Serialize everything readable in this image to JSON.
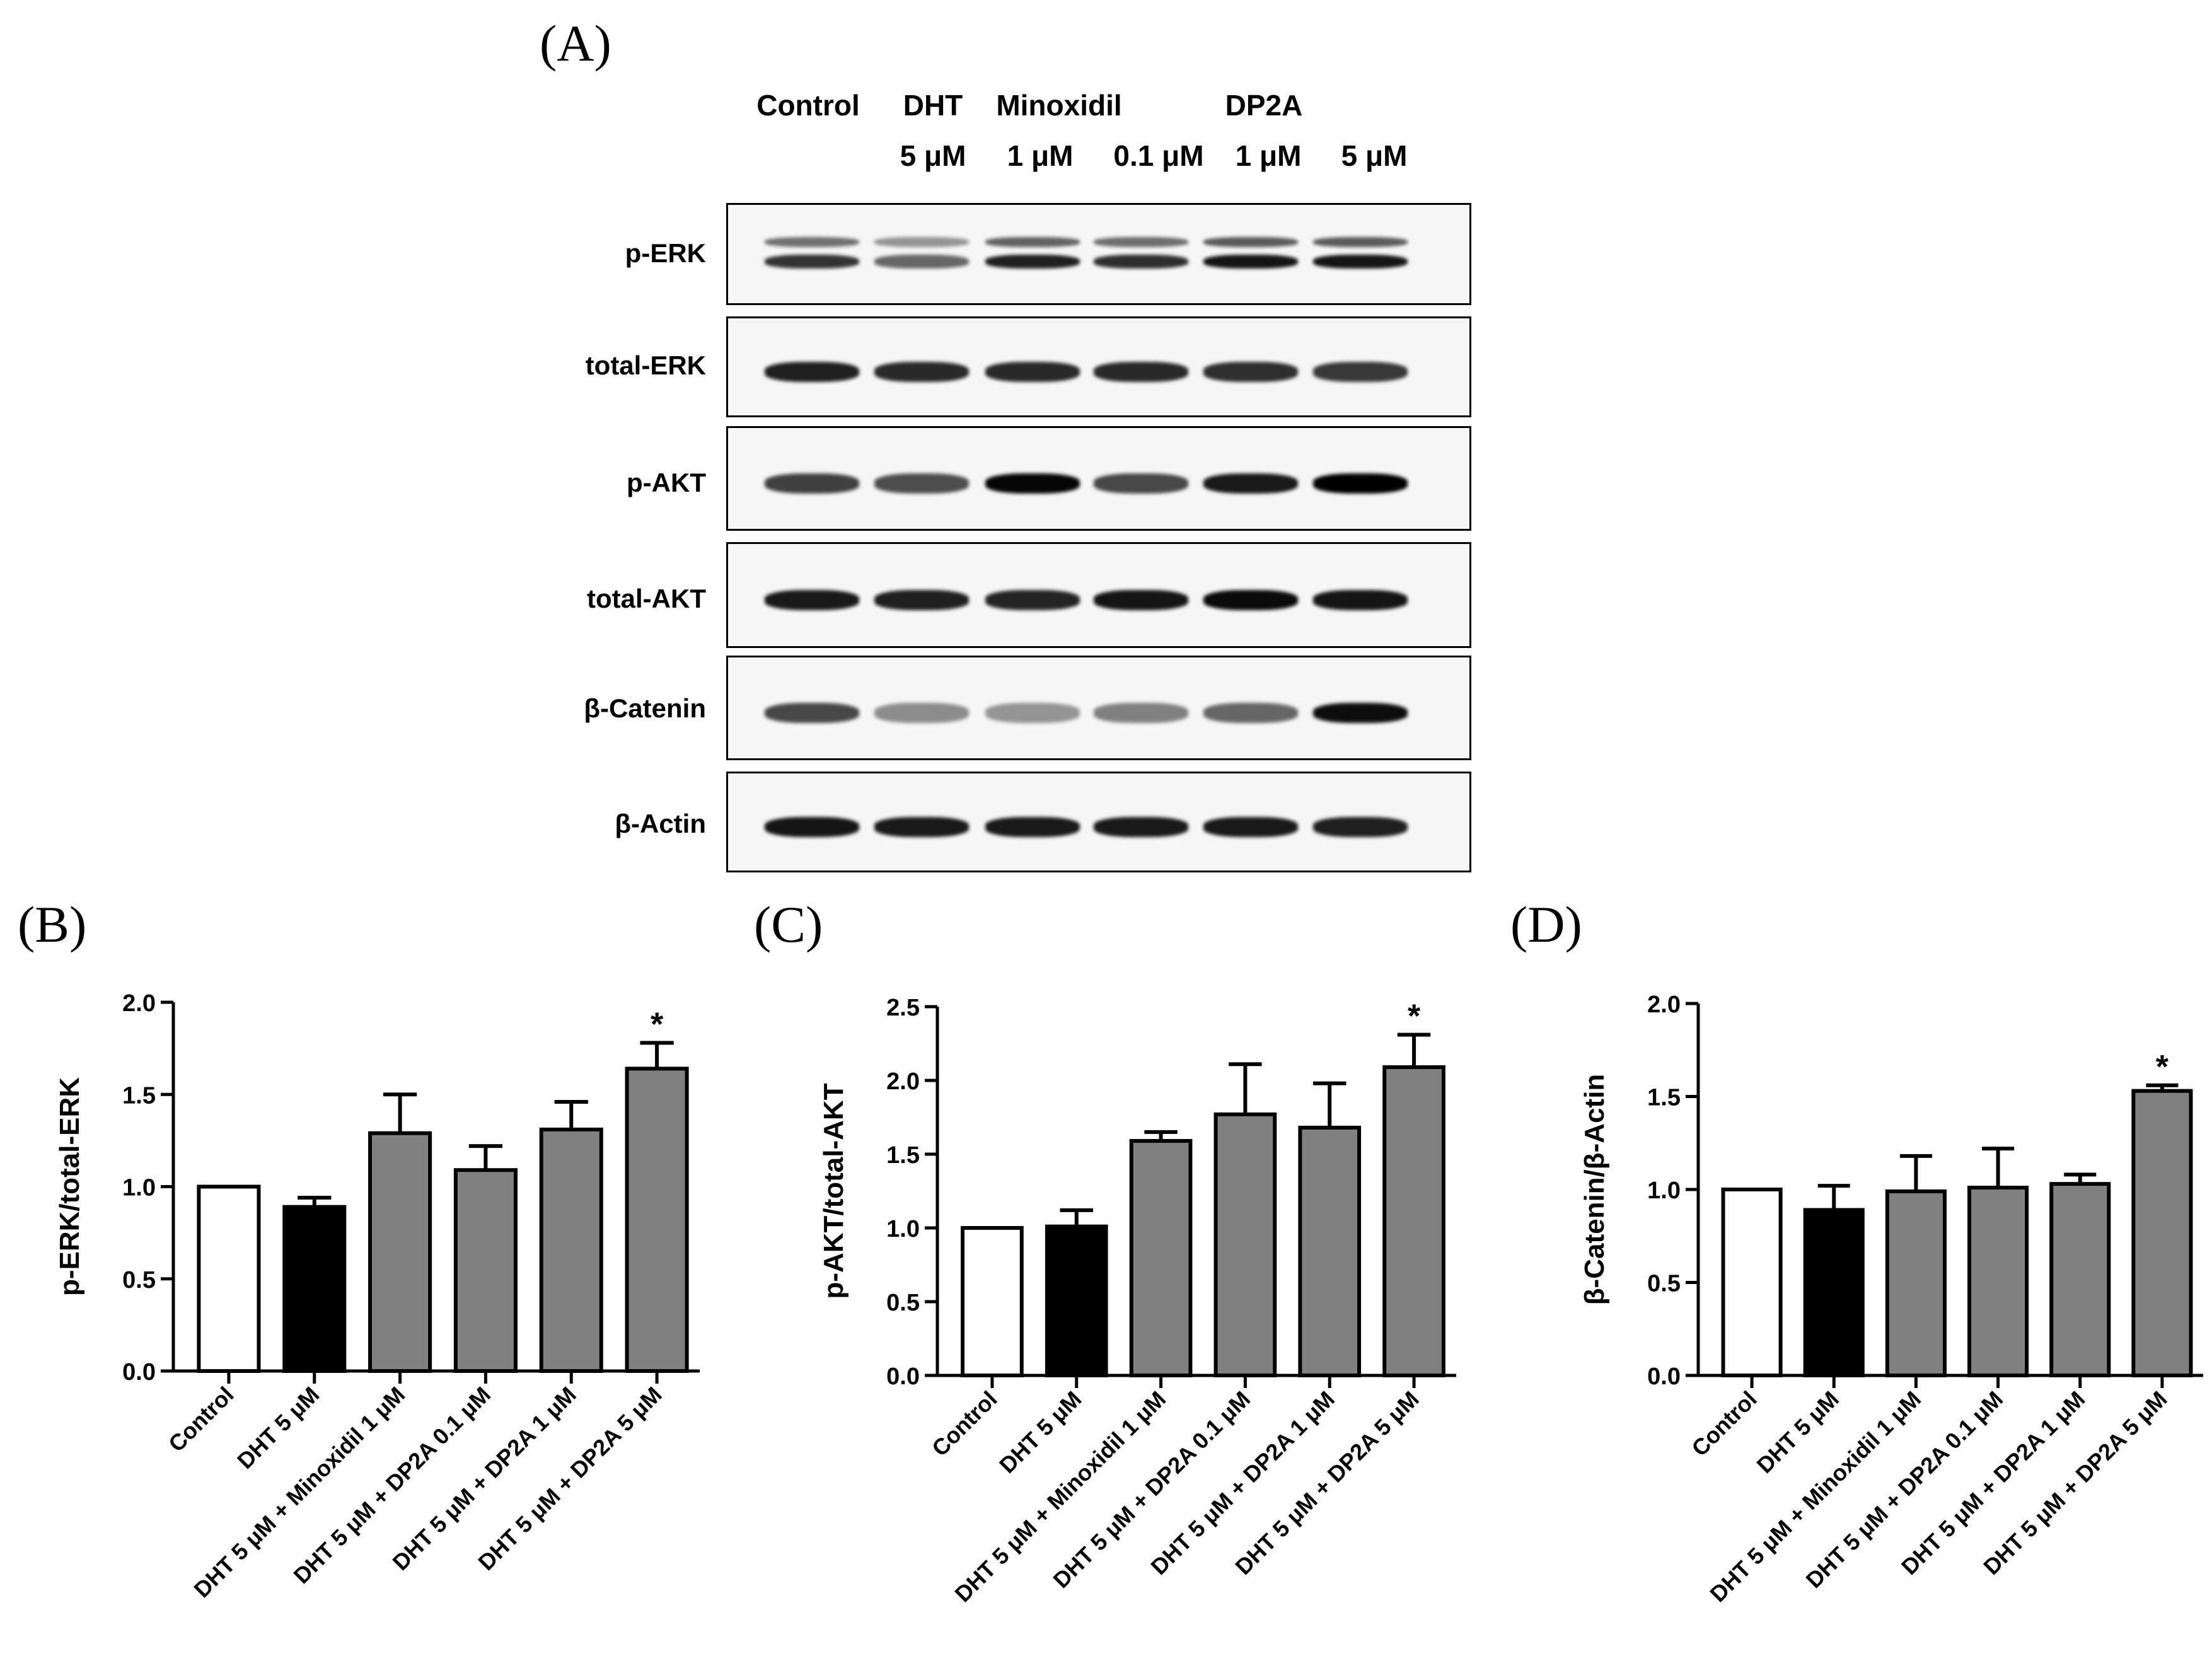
{
  "panel_a": {
    "letter": "(A)",
    "lane_header_top": [
      "Control",
      "DHT",
      "Minoxidil",
      "DP2A"
    ],
    "lane_header_bottom": [
      "5 μM",
      "1 μM",
      "0.1 μM",
      "1 μM",
      "5 μM"
    ],
    "blots": [
      {
        "label": "p-ERK",
        "intensity": [
          0.8,
          0.6,
          0.88,
          0.82,
          0.92,
          0.92
        ],
        "double_band": true
      },
      {
        "label": "total-ERK",
        "intensity": [
          0.88,
          0.84,
          0.84,
          0.84,
          0.82,
          0.78
        ],
        "double_band": false
      },
      {
        "label": "p-AKT",
        "intensity": [
          0.75,
          0.7,
          0.98,
          0.72,
          0.9,
          1.0
        ],
        "double_band": false
      },
      {
        "label": "total-AKT",
        "intensity": [
          0.9,
          0.88,
          0.86,
          0.92,
          0.96,
          0.92
        ],
        "double_band": false
      },
      {
        "label": "β-Catenin",
        "intensity": [
          0.72,
          0.45,
          0.42,
          0.5,
          0.6,
          0.95
        ],
        "double_band": false
      },
      {
        "label": "β-Actin",
        "intensity": [
          0.92,
          0.9,
          0.9,
          0.9,
          0.9,
          0.88
        ],
        "double_band": false
      }
    ]
  },
  "chart_data": [
    {
      "type": "bar",
      "panel": "(B)",
      "categories": [
        "Control",
        "DHT 5 μM",
        "DHT 5 μM + Minoxidil 1 μM",
        "DHT 5 μM + DP2A 0.1 μM",
        "DHT 5 μM + DP2A 1 μM",
        "DHT 5 μM + DP2A 5 μM"
      ],
      "values": [
        1.0,
        0.89,
        1.29,
        1.09,
        1.31,
        1.64
      ],
      "errors": [
        0,
        0.05,
        0.21,
        0.13,
        0.15,
        0.14
      ],
      "significance": [
        "",
        "",
        "",
        "",
        "",
        "*"
      ],
      "bar_colors": [
        "#ffffff",
        "#000000",
        "#808080",
        "#808080",
        "#808080",
        "#808080"
      ],
      "ylabel": "p-ERK/total-ERK",
      "ylim": [
        0,
        2.0
      ],
      "yticks": [
        "0.0",
        "0.5",
        "1.0",
        "1.5",
        "2.0"
      ]
    },
    {
      "type": "bar",
      "panel": "(C)",
      "categories": [
        "Control",
        "DHT 5 μM",
        "DHT 5 μM + Minoxidil 1 μM",
        "DHT 5 μM + DP2A 0.1 μM",
        "DHT 5 μM + DP2A 1 μM",
        "DHT 5 μM + DP2A 5 μM"
      ],
      "values": [
        1.0,
        1.01,
        1.59,
        1.77,
        1.68,
        2.09
      ],
      "errors": [
        0,
        0.11,
        0.06,
        0.34,
        0.3,
        0.22
      ],
      "significance": [
        "",
        "",
        "",
        "",
        "",
        "*"
      ],
      "bar_colors": [
        "#ffffff",
        "#000000",
        "#808080",
        "#808080",
        "#808080",
        "#808080"
      ],
      "ylabel": "p-AKT/total-AKT",
      "ylim": [
        0,
        2.5
      ],
      "yticks": [
        "0.0",
        "0.5",
        "1.0",
        "1.5",
        "2.0",
        "2.5"
      ]
    },
    {
      "type": "bar",
      "panel": "(D)",
      "categories": [
        "Control",
        "DHT 5 μM",
        "DHT 5 μM + Minoxidil 1 μM",
        "DHT 5 μM + DP2A 0.1 μM",
        "DHT 5 μM + DP2A 1 μM",
        "DHT 5 μM + DP2A 5 μM"
      ],
      "values": [
        1.0,
        0.89,
        0.99,
        1.01,
        1.03,
        1.53
      ],
      "errors": [
        0,
        0.13,
        0.19,
        0.21,
        0.05,
        0.03
      ],
      "significance": [
        "",
        "",
        "",
        "",
        "",
        "*"
      ],
      "bar_colors": [
        "#ffffff",
        "#000000",
        "#808080",
        "#808080",
        "#808080",
        "#808080"
      ],
      "ylabel": "β-Catenin/β-Actin",
      "ylim": [
        0,
        2.0
      ],
      "yticks": [
        "0.0",
        "0.5",
        "1.0",
        "1.5",
        "2.0"
      ]
    }
  ]
}
